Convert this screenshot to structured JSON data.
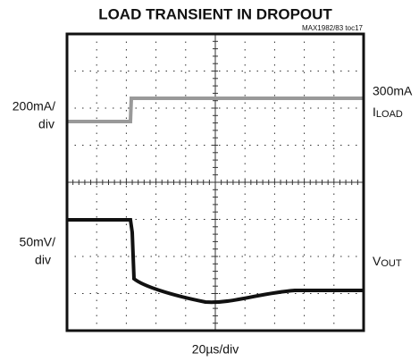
{
  "title": "LOAD TRANSIENT IN DROPOUT",
  "figure_id": "MAX1982/83 toc17",
  "left_labels": [
    {
      "line1": "200mA/",
      "line2": "div"
    },
    {
      "line1": "50mV/",
      "line2": "div"
    }
  ],
  "right_labels": {
    "load_level": "300mA",
    "load_name": {
      "main": "I",
      "sub": "LOAD"
    },
    "vout_name": {
      "main": "V",
      "sub": "OUT"
    }
  },
  "x_label": "20µs/div"
}
